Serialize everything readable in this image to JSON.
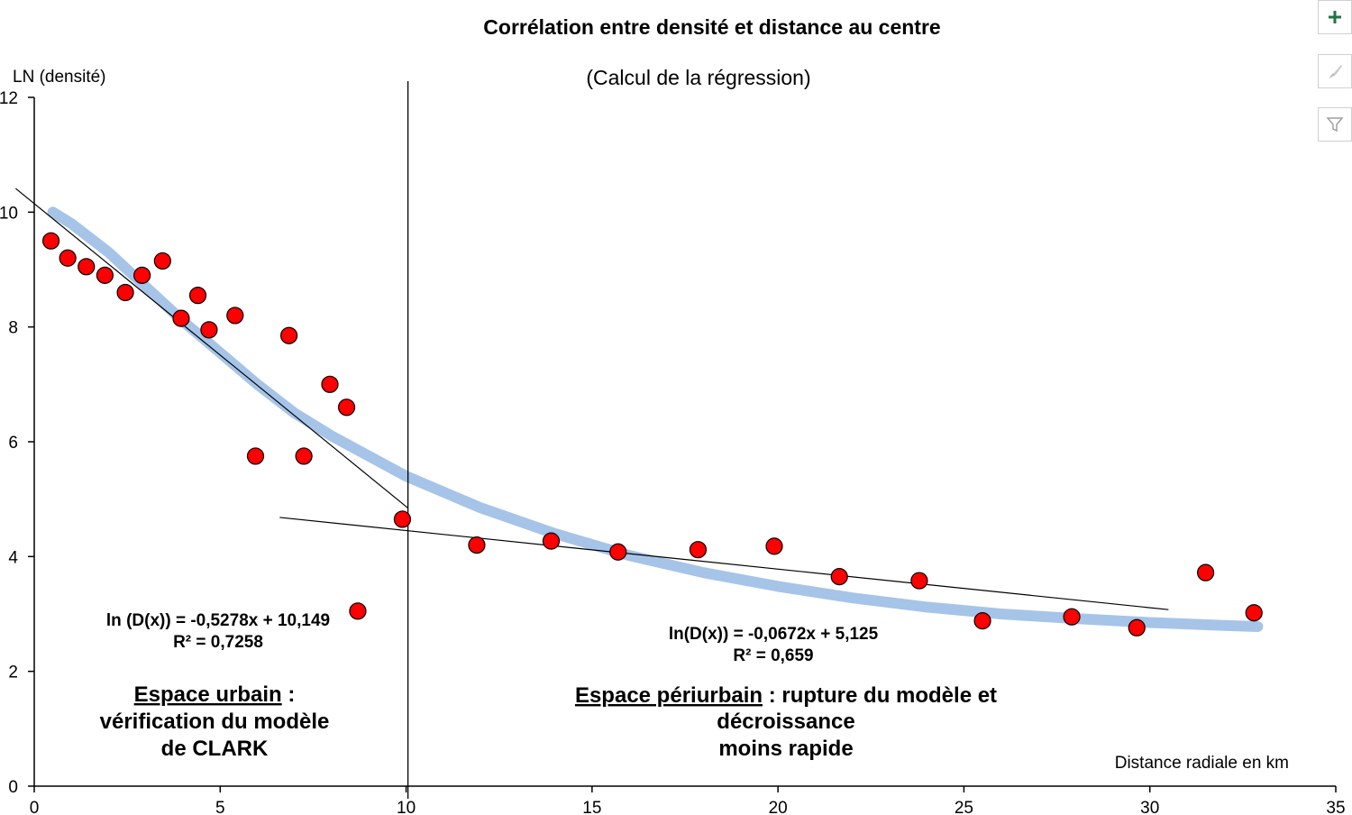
{
  "chart_data": {
    "type": "scatter",
    "title": "Corrélation entre densité et distance au centre",
    "subtitle": "(Calcul de la régression)",
    "ylabel": "LN (densité)",
    "xlabel": "Distance radiale en km",
    "xlim": [
      0,
      35
    ],
    "ylim": [
      0,
      12
    ],
    "xticks": [
      "0",
      "5",
      "10",
      "15",
      "20",
      "25",
      "30",
      "35"
    ],
    "yticks": [
      "0",
      "2",
      "4",
      "6",
      "8",
      "10",
      "12"
    ],
    "points": [
      {
        "x": 0.45,
        "y": 9.5
      },
      {
        "x": 0.9,
        "y": 9.2
      },
      {
        "x": 1.4,
        "y": 9.05
      },
      {
        "x": 1.9,
        "y": 8.9
      },
      {
        "x": 2.45,
        "y": 8.6
      },
      {
        "x": 2.9,
        "y": 8.9
      },
      {
        "x": 3.45,
        "y": 9.15
      },
      {
        "x": 3.95,
        "y": 8.15
      },
      {
        "x": 4.4,
        "y": 8.55
      },
      {
        "x": 4.7,
        "y": 7.95
      },
      {
        "x": 5.4,
        "y": 8.2
      },
      {
        "x": 5.95,
        "y": 5.75
      },
      {
        "x": 6.85,
        "y": 7.85
      },
      {
        "x": 7.25,
        "y": 5.75
      },
      {
        "x": 7.95,
        "y": 7.0
      },
      {
        "x": 8.4,
        "y": 6.6
      },
      {
        "x": 8.7,
        "y": 3.05
      },
      {
        "x": 9.9,
        "y": 4.65
      },
      {
        "x": 11.9,
        "y": 4.2
      },
      {
        "x": 13.9,
        "y": 4.27
      },
      {
        "x": 15.7,
        "y": 4.08
      },
      {
        "x": 17.85,
        "y": 4.12
      },
      {
        "x": 19.9,
        "y": 4.18
      },
      {
        "x": 21.65,
        "y": 3.65
      },
      {
        "x": 23.8,
        "y": 3.58
      },
      {
        "x": 25.5,
        "y": 2.88
      },
      {
        "x": 27.9,
        "y": 2.95
      },
      {
        "x": 29.65,
        "y": 2.76
      },
      {
        "x": 31.5,
        "y": 3.72
      },
      {
        "x": 32.8,
        "y": 3.02
      }
    ],
    "trend_curve": [
      {
        "x": 0.5,
        "y": 10.0
      },
      {
        "x": 1.0,
        "y": 9.8
      },
      {
        "x": 2.0,
        "y": 9.3
      },
      {
        "x": 3.0,
        "y": 8.7
      },
      {
        "x": 4.0,
        "y": 8.1
      },
      {
        "x": 5.0,
        "y": 7.55
      },
      {
        "x": 6.0,
        "y": 7.0
      },
      {
        "x": 7.0,
        "y": 6.5
      },
      {
        "x": 8.0,
        "y": 6.1
      },
      {
        "x": 9.0,
        "y": 5.75
      },
      {
        "x": 10.0,
        "y": 5.4
      },
      {
        "x": 12.0,
        "y": 4.85
      },
      {
        "x": 14.0,
        "y": 4.4
      },
      {
        "x": 16.0,
        "y": 4.02
      },
      {
        "x": 18.0,
        "y": 3.72
      },
      {
        "x": 20.0,
        "y": 3.48
      },
      {
        "x": 22.0,
        "y": 3.28
      },
      {
        "x": 24.0,
        "y": 3.12
      },
      {
        "x": 26.0,
        "y": 3.0
      },
      {
        "x": 28.0,
        "y": 2.92
      },
      {
        "x": 30.0,
        "y": 2.85
      },
      {
        "x": 32.0,
        "y": 2.8
      },
      {
        "x": 32.9,
        "y": 2.78
      }
    ],
    "regressions": [
      {
        "slope": -0.5278,
        "intercept": 10.149,
        "x_from": -0.5,
        "x_to": 10.05
      },
      {
        "slope": -0.0672,
        "intercept": 5.125,
        "x_from": 6.6,
        "x_to": 30.5
      }
    ],
    "divider_x": 10.05,
    "colors": {
      "points": "#ff0000",
      "curve": "#a6c4e8",
      "lines": "#000000"
    }
  },
  "annotations": {
    "eq_left_line1": "ln (D(x)) = -0,5278x + 10,149",
    "eq_left_line2": "R² = 0,7258",
    "eq_right_line1": "ln(D(x)) = -0,0672x + 5,125",
    "eq_right_line2": "R² = 0,659",
    "urban_title": "Espace urbain",
    "urban_colon": " :",
    "urban_line2": "vérification du modèle",
    "urban_line3": "de CLARK",
    "periurban_title": "Espace périurbain",
    "periurban_rest": " : rupture du modèle  et",
    "periurban_line2": "décroissance",
    "periurban_line3": "moins rapide"
  },
  "side_buttons": {
    "add": "plus-icon",
    "style": "brush-icon",
    "filter": "filter-icon",
    "accent": "#217346"
  }
}
